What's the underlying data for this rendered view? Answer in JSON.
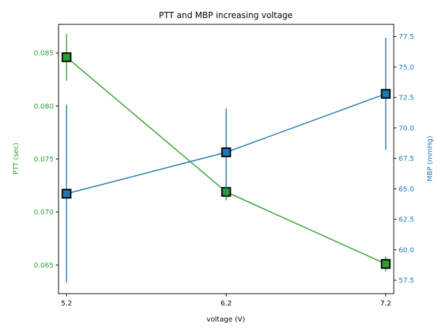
{
  "chart_data": {
    "type": "line",
    "title": "PTT and MBP increasing voltage",
    "xlabel": "voltage (V)",
    "x": [
      5.2,
      6.2,
      7.2
    ],
    "x_tick_labels": [
      "5.2",
      "6.2",
      "7.2"
    ],
    "xlim": [
      5.15,
      7.25
    ],
    "grid": false,
    "legend": "none",
    "axes": {
      "left": {
        "label": "PTT (sec)",
        "color": "#2ca02c",
        "ylim": [
          0.0623,
          0.0877
        ],
        "ticks": [
          0.065,
          0.07,
          0.075,
          0.08,
          0.085
        ],
        "tick_labels": [
          "0.065",
          "0.070",
          "0.075",
          "0.080",
          "0.085"
        ]
      },
      "right": {
        "label": "MBP (mmHg)",
        "color": "#1f77b4",
        "ylim": [
          56.4,
          78.5
        ],
        "ticks": [
          57.5,
          60.0,
          62.5,
          65.0,
          67.5,
          70.0,
          72.5,
          75.0,
          77.5
        ],
        "tick_labels": [
          "57.5",
          "60.0",
          "62.5",
          "65.0",
          "67.5",
          "70.0",
          "72.5",
          "75.0",
          "77.5"
        ]
      }
    },
    "series": [
      {
        "axis": "left",
        "color": "#2ca02c",
        "marker": "square",
        "values": [
          0.0846,
          0.0719,
          0.0651
        ],
        "errors": [
          0.0022,
          0.0008,
          0.0007
        ]
      },
      {
        "axis": "right",
        "color": "#1f77b4",
        "marker": "square",
        "values": [
          64.6,
          68.0,
          72.8
        ],
        "errors": [
          7.3,
          3.6,
          4.6
        ]
      }
    ]
  }
}
